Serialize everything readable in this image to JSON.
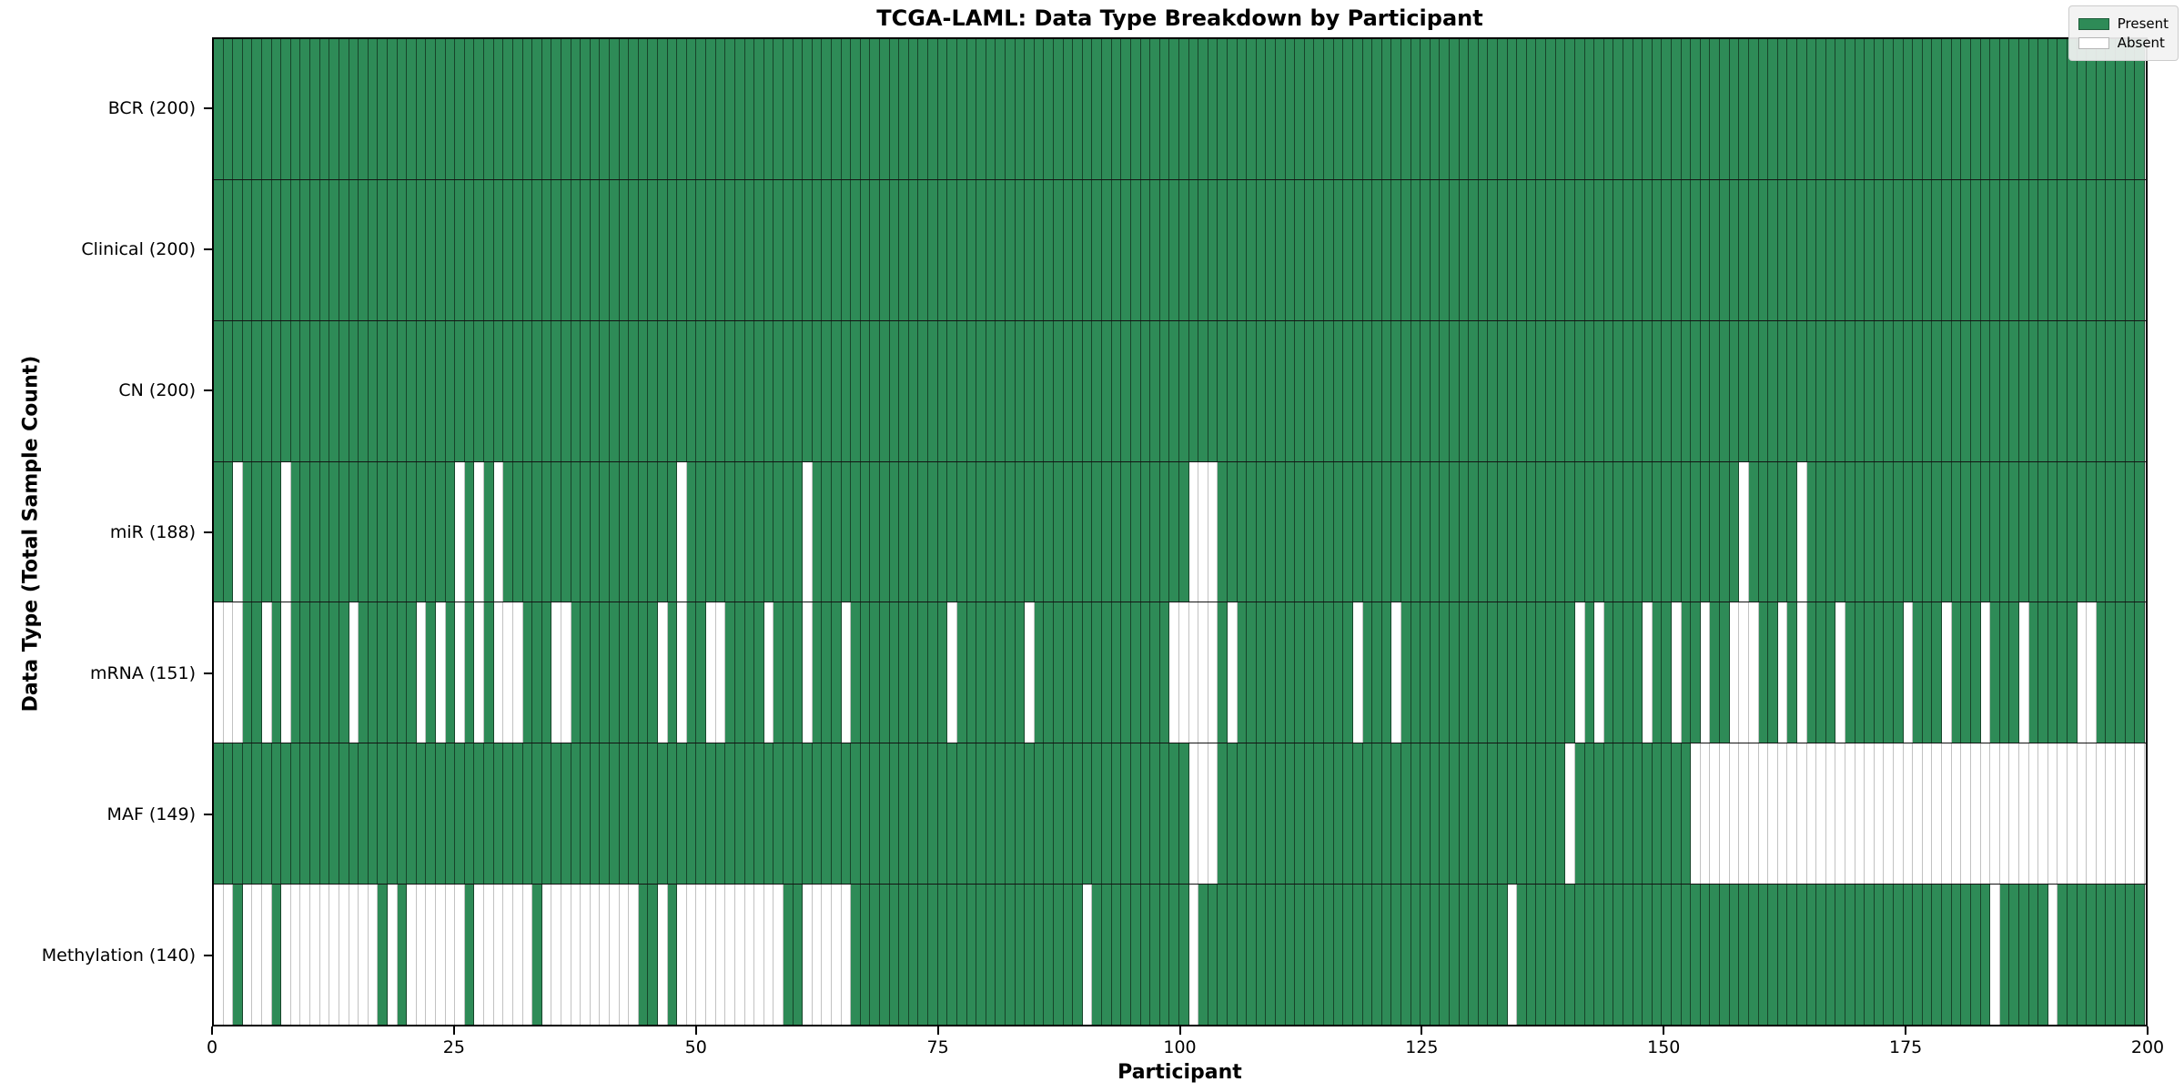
{
  "chart_data": {
    "type": "heatmap",
    "title": "TCGA-LAML: Data Type Breakdown by Participant",
    "xlabel": "Participant",
    "ylabel": "Data Type (Total Sample Count)",
    "n_participants": 200,
    "x_ticks": [
      0,
      25,
      50,
      75,
      100,
      125,
      150,
      175,
      200
    ],
    "legend_position": "upper right",
    "grid": false,
    "colors": {
      "present": "#2e8b57",
      "absent": "#ffffff"
    },
    "legend": [
      {
        "label": "Present",
        "color": "#2e8b57"
      },
      {
        "label": "Absent",
        "color": "#ffffff"
      }
    ],
    "rows": [
      {
        "label": "BCR (200)",
        "total": 200,
        "absent": []
      },
      {
        "label": "Clinical (200)",
        "total": 200,
        "absent": []
      },
      {
        "label": "CN (200)",
        "total": 200,
        "absent": []
      },
      {
        "label": "miR (188)",
        "total": 188,
        "absent": [
          2,
          7,
          25,
          27,
          29,
          48,
          61,
          101,
          102,
          103,
          158,
          164
        ]
      },
      {
        "label": "mRNA (151)",
        "total": 151,
        "absent": [
          0,
          1,
          2,
          5,
          7,
          14,
          21,
          23,
          25,
          27,
          29,
          30,
          31,
          35,
          36,
          46,
          48,
          51,
          52,
          57,
          61,
          65,
          76,
          84,
          99,
          100,
          101,
          102,
          103,
          105,
          118,
          122,
          141,
          143,
          148,
          151,
          154,
          157,
          158,
          159,
          162,
          164,
          168,
          175,
          179,
          183,
          187,
          193,
          194
        ]
      },
      {
        "label": "MAF (149)",
        "total": 149,
        "absent": [
          101,
          102,
          103,
          140,
          153,
          154,
          155,
          156,
          157,
          158,
          159,
          160,
          161,
          162,
          163,
          164,
          165,
          166,
          167,
          168,
          169,
          170,
          171,
          172,
          173,
          174,
          175,
          176,
          177,
          178,
          179,
          180,
          181,
          182,
          183,
          184,
          185,
          186,
          187,
          188,
          189,
          190,
          191,
          192,
          193,
          194,
          195,
          196,
          197,
          198,
          199
        ]
      },
      {
        "label": "Methylation (140)",
        "total": 140,
        "absent": [
          0,
          1,
          3,
          4,
          5,
          7,
          8,
          9,
          10,
          11,
          12,
          13,
          14,
          15,
          16,
          18,
          20,
          21,
          22,
          23,
          24,
          25,
          27,
          28,
          29,
          30,
          31,
          32,
          34,
          35,
          36,
          37,
          38,
          39,
          40,
          41,
          42,
          43,
          46,
          48,
          49,
          50,
          51,
          52,
          53,
          54,
          55,
          56,
          57,
          58,
          61,
          62,
          63,
          64,
          65,
          90,
          101,
          134,
          184,
          190
        ]
      }
    ]
  }
}
